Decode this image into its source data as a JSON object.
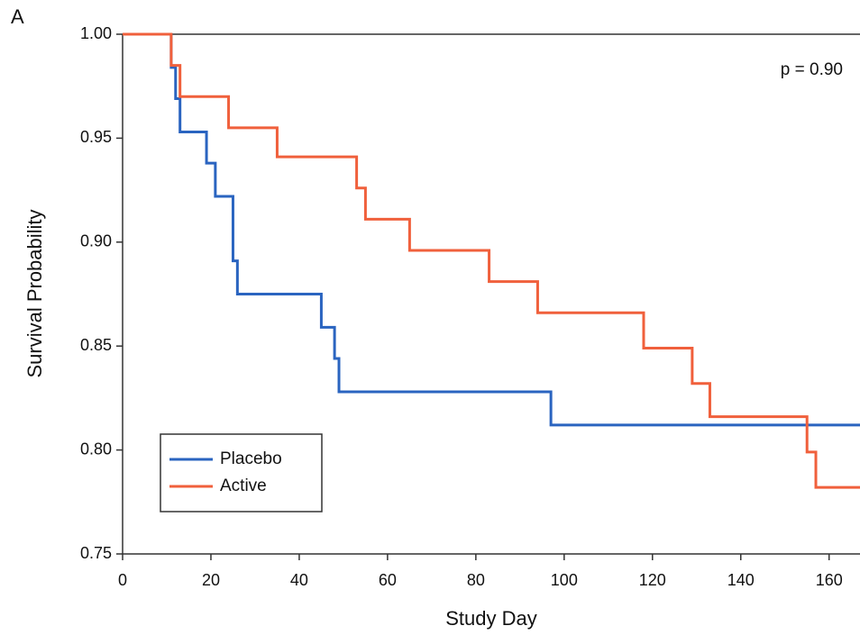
{
  "chart_data": {
    "type": "step",
    "panel_label": "A",
    "annotation": "p = 0.90",
    "x_label": "Study Day",
    "y_label": "Survival Probability",
    "xlim": [
      0,
      167
    ],
    "ylim": [
      0.75,
      1.0
    ],
    "xticks": [
      0,
      20,
      40,
      60,
      80,
      100,
      120,
      140,
      160
    ],
    "yticks": [
      {
        "value": 0.75,
        "label": "0.75"
      },
      {
        "value": 0.8,
        "label": "0.80"
      },
      0.85,
      {
        "value": 0.9,
        "label": "0.90"
      },
      0.95,
      {
        "value": 1.0,
        "label": "1.00"
      }
    ],
    "legend": "bottom-left",
    "series": [
      {
        "name": "Placebo",
        "color": "#2a64c0",
        "x": [
          0,
          11,
          12,
          13,
          19,
          21,
          25,
          26,
          45,
          48,
          49,
          97
        ],
        "values": [
          1.0,
          0.984,
          0.969,
          0.953,
          0.938,
          0.922,
          0.891,
          0.875,
          0.859,
          0.844,
          0.828,
          0.812
        ]
      },
      {
        "name": "Active",
        "color": "#f0603c",
        "x": [
          0,
          11,
          13,
          24,
          35,
          53,
          55,
          65,
          83,
          94,
          118,
          129,
          133,
          155,
          157
        ],
        "values": [
          1.0,
          0.985,
          0.97,
          0.955,
          0.941,
          0.926,
          0.911,
          0.896,
          0.881,
          0.866,
          0.849,
          0.832,
          0.816,
          0.799,
          0.782
        ]
      }
    ]
  }
}
